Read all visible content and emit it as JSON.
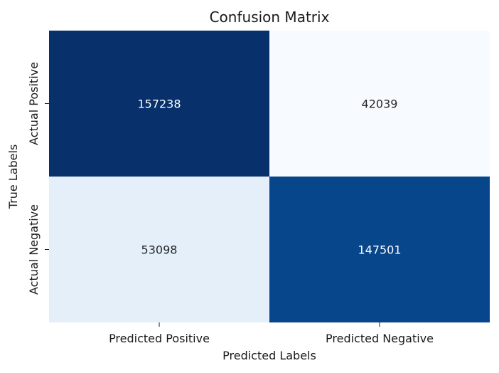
{
  "chart_data": {
    "type": "heatmap",
    "title": "Confusion Matrix",
    "xlabel": "Predicted Labels",
    "ylabel": "True Labels",
    "x_categories": [
      "Predicted Positive",
      "Predicted Negative"
    ],
    "y_categories": [
      "Actual Positive",
      "Actual Negative"
    ],
    "values": [
      [
        157238,
        42039
      ],
      [
        53098,
        147501
      ]
    ],
    "colormap": "Blues",
    "colorbar": false,
    "value_range": [
      42039,
      157238
    ]
  }
}
